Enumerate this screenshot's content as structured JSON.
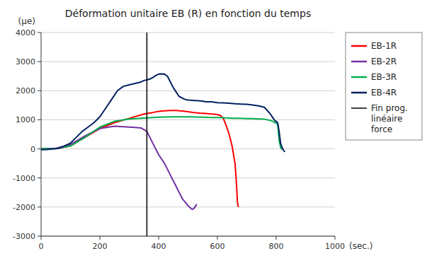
{
  "chart_data": {
    "type": "line",
    "title": "Déformation unitaire EB (R) en fonction du temps",
    "ylabel": "(μe)",
    "xlabel": "(sec.)",
    "xlim": [
      0,
      1000
    ],
    "ylim": [
      -3000,
      4000
    ],
    "xticks": [
      0,
      200,
      400,
      600,
      800,
      1000
    ],
    "yticks": [
      -3000,
      -2000,
      -1000,
      0,
      1000,
      2000,
      3000,
      4000
    ],
    "grid": "y",
    "legend": "right",
    "series": [
      {
        "name": "EB-1R",
        "color": "#ff0000",
        "x": [
          0,
          50,
          100,
          150,
          200,
          250,
          300,
          350,
          380,
          400,
          420,
          440,
          460,
          480,
          500,
          520,
          540,
          560,
          580,
          600,
          610,
          620,
          630,
          640,
          650,
          660,
          665,
          668,
          670,
          672
        ],
        "values": [
          0,
          10,
          100,
          400,
          700,
          900,
          1050,
          1200,
          1250,
          1290,
          1310,
          1320,
          1320,
          1300,
          1280,
          1250,
          1230,
          1220,
          1200,
          1180,
          1150,
          1050,
          800,
          500,
          100,
          -500,
          -1200,
          -1800,
          -1950,
          -2000
        ]
      },
      {
        "name": "EB-2R",
        "color": "#7030a0",
        "x": [
          0,
          50,
          100,
          150,
          200,
          250,
          280,
          300,
          320,
          340,
          360,
          370,
          380,
          390,
          400,
          420,
          440,
          460,
          480,
          500,
          510,
          515,
          520,
          530
        ],
        "values": [
          0,
          20,
          150,
          450,
          700,
          780,
          760,
          750,
          740,
          720,
          600,
          400,
          200,
          0,
          -200,
          -500,
          -900,
          -1300,
          -1700,
          -1950,
          -2050,
          -2080,
          -2050,
          -1900
        ]
      },
      {
        "name": "EB-3R",
        "color": "#00b050",
        "x": [
          0,
          50,
          100,
          150,
          200,
          250,
          300,
          350,
          400,
          450,
          500,
          550,
          580,
          600,
          620,
          640,
          660,
          680,
          700,
          720,
          740,
          760,
          780,
          790,
          795,
          800,
          805,
          810,
          815,
          820
        ],
        "values": [
          0,
          10,
          100,
          400,
          750,
          950,
          1030,
          1060,
          1090,
          1100,
          1100,
          1090,
          1080,
          1080,
          1070,
          1060,
          1050,
          1050,
          1040,
          1040,
          1030,
          1020,
          980,
          940,
          900,
          880,
          850,
          300,
          50,
          -20
        ]
      },
      {
        "name": "EB-4R",
        "color": "#002060",
        "x": [
          0,
          20,
          40,
          60,
          80,
          100,
          120,
          140,
          160,
          180,
          200,
          220,
          240,
          260,
          280,
          300,
          320,
          340,
          350,
          360,
          370,
          380,
          390,
          400,
          410,
          420,
          430,
          440,
          450,
          460,
          470,
          480,
          490,
          500,
          510,
          520,
          530,
          540,
          550,
          560,
          580,
          600,
          620,
          640,
          660,
          680,
          700,
          720,
          740,
          760,
          780,
          790,
          795,
          800,
          805,
          810,
          815,
          820,
          825,
          830
        ],
        "values": [
          -30,
          -20,
          0,
          20,
          100,
          200,
          400,
          600,
          750,
          900,
          1100,
          1400,
          1700,
          2000,
          2150,
          2200,
          2250,
          2300,
          2350,
          2370,
          2400,
          2450,
          2520,
          2570,
          2580,
          2570,
          2500,
          2300,
          2100,
          1950,
          1800,
          1750,
          1700,
          1680,
          1670,
          1660,
          1660,
          1650,
          1640,
          1620,
          1620,
          1590,
          1580,
          1570,
          1550,
          1540,
          1530,
          1510,
          1480,
          1430,
          1200,
          1050,
          980,
          940,
          900,
          600,
          200,
          50,
          -50,
          -100
        ]
      }
    ],
    "vlines": [
      {
        "x": 360,
        "color": "#000000",
        "label": "Fin prog.\nlinéaire\nforce"
      }
    ]
  }
}
